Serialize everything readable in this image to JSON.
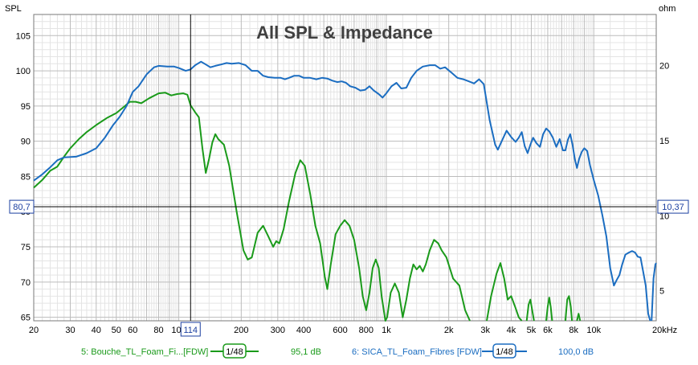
{
  "chart_data": {
    "type": "line",
    "title": "All SPL & Impedance",
    "ylabel_left": "SPL",
    "ylabel_right": "ohm",
    "xscale": "log",
    "xlim": [
      20,
      20000
    ],
    "ylim_left": [
      64.5,
      108
    ],
    "ylim_right": [
      3,
      23.4
    ],
    "grid": true,
    "x_ticks": [
      {
        "v": 20,
        "label": "20"
      },
      {
        "v": 30,
        "label": "30"
      },
      {
        "v": 40,
        "label": "40"
      },
      {
        "v": 50,
        "label": "50"
      },
      {
        "v": 60,
        "label": "60"
      },
      {
        "v": 80,
        "label": "80"
      },
      {
        "v": 100,
        "label": "100"
      },
      {
        "v": 200,
        "label": "200"
      },
      {
        "v": 300,
        "label": "300"
      },
      {
        "v": 400,
        "label": "400"
      },
      {
        "v": 600,
        "label": "600"
      },
      {
        "v": 800,
        "label": "800"
      },
      {
        "v": 1000,
        "label": "1k"
      },
      {
        "v": 2000,
        "label": "2k"
      },
      {
        "v": 3000,
        "label": "3k"
      },
      {
        "v": 4000,
        "label": "4k"
      },
      {
        "v": 5000,
        "label": "5k"
      },
      {
        "v": 6000,
        "label": "6k"
      },
      {
        "v": 8000,
        "label": "8k"
      },
      {
        "v": 10000,
        "label": "10k"
      },
      {
        "v": 20000,
        "label": "20kHz"
      }
    ],
    "y_ticks_left": [
      65,
      70,
      75,
      80,
      85,
      90,
      95,
      100,
      105
    ],
    "y_ticks_right": [
      5,
      10,
      15,
      20
    ],
    "cursor": {
      "x": 114,
      "x_label": "114",
      "y": 80.7,
      "y_label_left": "80,7",
      "y_label_right": "10,37"
    },
    "series": [
      {
        "name": "5: Bouche_TL_Foam_Fi...[FDW]",
        "color": "#1a9a1a",
        "smoothing": "1/48",
        "value_label": "95,1 dB",
        "points": [
          [
            20,
            83.4
          ],
          [
            22,
            84.5
          ],
          [
            24,
            85.8
          ],
          [
            26,
            86.4
          ],
          [
            28,
            87.8
          ],
          [
            30,
            89.0
          ],
          [
            33,
            90.3
          ],
          [
            36,
            91.3
          ],
          [
            40,
            92.3
          ],
          [
            45,
            93.3
          ],
          [
            50,
            94.0
          ],
          [
            55,
            95.0
          ],
          [
            58,
            95.6
          ],
          [
            62,
            95.6
          ],
          [
            66,
            95.4
          ],
          [
            72,
            96.1
          ],
          [
            80,
            96.8
          ],
          [
            86,
            96.9
          ],
          [
            92,
            96.5
          ],
          [
            98,
            96.7
          ],
          [
            105,
            96.8
          ],
          [
            110,
            96.6
          ],
          [
            114,
            95.1
          ],
          [
            120,
            94.1
          ],
          [
            125,
            93.4
          ],
          [
            130,
            89.0
          ],
          [
            135,
            85.5
          ],
          [
            140,
            87.5
          ],
          [
            145,
            89.8
          ],
          [
            150,
            91.0
          ],
          [
            155,
            90.3
          ],
          [
            165,
            89.5
          ],
          [
            175,
            86.5
          ],
          [
            190,
            80.0
          ],
          [
            205,
            74.5
          ],
          [
            215,
            73.2
          ],
          [
            225,
            73.5
          ],
          [
            240,
            77.0
          ],
          [
            255,
            78.0
          ],
          [
            270,
            76.5
          ],
          [
            285,
            75.0
          ],
          [
            295,
            75.8
          ],
          [
            305,
            75.5
          ],
          [
            320,
            77.5
          ],
          [
            340,
            81.5
          ],
          [
            365,
            85.5
          ],
          [
            385,
            87.3
          ],
          [
            405,
            86.5
          ],
          [
            430,
            82.5
          ],
          [
            455,
            78.0
          ],
          [
            480,
            75.5
          ],
          [
            505,
            70.8
          ],
          [
            520,
            69.0
          ],
          [
            540,
            72.5
          ],
          [
            570,
            76.8
          ],
          [
            600,
            78.0
          ],
          [
            630,
            78.8
          ],
          [
            665,
            78.0
          ],
          [
            700,
            76.0
          ],
          [
            740,
            72.0
          ],
          [
            770,
            68.0
          ],
          [
            800,
            66.0
          ],
          [
            830,
            68.5
          ],
          [
            860,
            72.0
          ],
          [
            890,
            73.2
          ],
          [
            920,
            72.0
          ],
          [
            950,
            68.0
          ],
          [
            990,
            64.5
          ],
          [
            1010,
            65.0
          ],
          [
            1050,
            68.5
          ],
          [
            1100,
            69.8
          ],
          [
            1150,
            68.5
          ],
          [
            1200,
            65.0
          ],
          [
            1250,
            67.5
          ],
          [
            1300,
            70.5
          ],
          [
            1350,
            72.5
          ],
          [
            1400,
            71.8
          ],
          [
            1450,
            72.3
          ],
          [
            1500,
            71.5
          ],
          [
            1550,
            72.5
          ],
          [
            1620,
            74.5
          ],
          [
            1700,
            76.0
          ],
          [
            1780,
            75.5
          ],
          [
            1850,
            74.5
          ],
          [
            1950,
            73.5
          ],
          [
            2100,
            70.5
          ],
          [
            2250,
            69.5
          ],
          [
            2400,
            66.0
          ],
          [
            2530,
            64.5
          ]
        ],
        "extra_segments": [
          [
            [
              3050,
              64.5
            ],
            [
              3200,
              68.0
            ],
            [
              3400,
              71.2
            ],
            [
              3550,
              72.7
            ],
            [
              3700,
              70.5
            ],
            [
              3850,
              67.5
            ],
            [
              4000,
              68.0
            ],
            [
              4200,
              66.3
            ],
            [
              4350,
              65.0
            ],
            [
              4500,
              64.5
            ]
          ],
          [
            [
              4750,
              64.5
            ],
            [
              4850,
              66.8
            ],
            [
              4950,
              67.5
            ],
            [
              5050,
              66.0
            ],
            [
              5150,
              64.5
            ]
          ],
          [
            [
              5900,
              64.5
            ],
            [
              6000,
              66.5
            ],
            [
              6100,
              67.8
            ],
            [
              6200,
              66.5
            ],
            [
              6300,
              64.5
            ]
          ],
          [
            [
              7300,
              64.5
            ],
            [
              7450,
              67.5
            ],
            [
              7600,
              68.0
            ],
            [
              7750,
              66.5
            ],
            [
              7850,
              64.5
            ]
          ],
          [
            [
              8300,
              64.5
            ],
            [
              8450,
              65.5
            ],
            [
              8600,
              64.5
            ]
          ]
        ]
      },
      {
        "name": "6: SICA_TL_Foam_Fibres [FDW]",
        "color": "#1b6dc1",
        "smoothing": "1/48",
        "value_label": "100,0 dB",
        "points": [
          [
            20,
            84.4
          ],
          [
            22,
            85.3
          ],
          [
            24,
            86.3
          ],
          [
            26,
            87.3
          ],
          [
            28,
            87.7
          ],
          [
            32,
            87.8
          ],
          [
            36,
            88.3
          ],
          [
            40,
            89.0
          ],
          [
            44,
            90.5
          ],
          [
            48,
            92.2
          ],
          [
            52,
            93.5
          ],
          [
            56,
            95.0
          ],
          [
            60,
            97.0
          ],
          [
            64,
            97.8
          ],
          [
            70,
            99.5
          ],
          [
            76,
            100.5
          ],
          [
            80,
            100.7
          ],
          [
            88,
            100.6
          ],
          [
            95,
            100.6
          ],
          [
            100,
            100.4
          ],
          [
            108,
            100.0
          ],
          [
            114,
            100.2
          ],
          [
            120,
            100.8
          ],
          [
            128,
            101.3
          ],
          [
            135,
            100.9
          ],
          [
            142,
            100.5
          ],
          [
            150,
            100.7
          ],
          [
            160,
            100.9
          ],
          [
            170,
            101.1
          ],
          [
            180,
            101.0
          ],
          [
            195,
            101.1
          ],
          [
            210,
            100.8
          ],
          [
            225,
            100.0
          ],
          [
            240,
            100.0
          ],
          [
            255,
            99.3
          ],
          [
            270,
            99.1
          ],
          [
            290,
            99.0
          ],
          [
            310,
            99.0
          ],
          [
            325,
            98.8
          ],
          [
            340,
            99.0
          ],
          [
            360,
            99.3
          ],
          [
            380,
            99.3
          ],
          [
            400,
            99.0
          ],
          [
            430,
            99.0
          ],
          [
            460,
            98.8
          ],
          [
            490,
            99.0
          ],
          [
            520,
            98.9
          ],
          [
            550,
            98.6
          ],
          [
            580,
            98.4
          ],
          [
            610,
            98.5
          ],
          [
            640,
            98.3
          ],
          [
            670,
            97.8
          ],
          [
            710,
            97.6
          ],
          [
            750,
            97.2
          ],
          [
            790,
            97.3
          ],
          [
            830,
            97.8
          ],
          [
            870,
            97.2
          ],
          [
            920,
            96.7
          ],
          [
            960,
            96.2
          ],
          [
            1000,
            96.8
          ],
          [
            1060,
            97.8
          ],
          [
            1120,
            98.3
          ],
          [
            1180,
            97.5
          ],
          [
            1250,
            97.6
          ],
          [
            1320,
            99.0
          ],
          [
            1400,
            100.0
          ],
          [
            1500,
            100.6
          ],
          [
            1620,
            100.8
          ],
          [
            1720,
            100.8
          ],
          [
            1820,
            100.3
          ],
          [
            1920,
            100.5
          ],
          [
            2050,
            99.8
          ],
          [
            2200,
            99.0
          ],
          [
            2350,
            98.8
          ],
          [
            2500,
            98.5
          ],
          [
            2650,
            98.2
          ],
          [
            2800,
            98.8
          ],
          [
            2950,
            98.1
          ],
          [
            3150,
            93.0
          ],
          [
            3350,
            89.5
          ],
          [
            3450,
            88.8
          ],
          [
            3600,
            90.0
          ],
          [
            3800,
            91.5
          ],
          [
            4000,
            90.6
          ],
          [
            4200,
            89.9
          ],
          [
            4350,
            90.5
          ],
          [
            4500,
            91.3
          ],
          [
            4650,
            89.3
          ],
          [
            4800,
            88.3
          ],
          [
            4950,
            89.5
          ],
          [
            5100,
            90.5
          ],
          [
            5300,
            89.7
          ],
          [
            5500,
            89.2
          ],
          [
            5700,
            91.0
          ],
          [
            5900,
            91.8
          ],
          [
            6100,
            91.4
          ],
          [
            6350,
            90.5
          ],
          [
            6600,
            89.2
          ],
          [
            6850,
            90.3
          ],
          [
            7100,
            88.7
          ],
          [
            7300,
            88.7
          ],
          [
            7500,
            90.2
          ],
          [
            7700,
            91.0
          ],
          [
            7900,
            89.5
          ],
          [
            8100,
            87.5
          ],
          [
            8300,
            86.2
          ],
          [
            8500,
            87.5
          ],
          [
            8750,
            88.5
          ],
          [
            9000,
            89.0
          ],
          [
            9300,
            88.6
          ],
          [
            9600,
            86.5
          ],
          [
            10000,
            84.5
          ],
          [
            10500,
            82.3
          ],
          [
            11000,
            79.5
          ],
          [
            11500,
            76.5
          ],
          [
            12000,
            72.0
          ],
          [
            12500,
            69.5
          ],
          [
            12900,
            70.3
          ],
          [
            13300,
            71.0
          ],
          [
            13700,
            72.5
          ],
          [
            14200,
            73.9
          ],
          [
            14800,
            74.2
          ],
          [
            15300,
            74.4
          ],
          [
            15800,
            74.2
          ],
          [
            16300,
            73.6
          ],
          [
            16800,
            73.5
          ],
          [
            17300,
            71.5
          ],
          [
            17800,
            69.5
          ],
          [
            18300,
            65.5
          ],
          [
            18700,
            64.5
          ]
        ],
        "extra_segments": [
          [
            [
              19000,
              64.5
            ],
            [
              19400,
              70.5
            ],
            [
              19800,
              72.5
            ],
            [
              20000,
              72.7
            ]
          ]
        ]
      }
    ]
  }
}
